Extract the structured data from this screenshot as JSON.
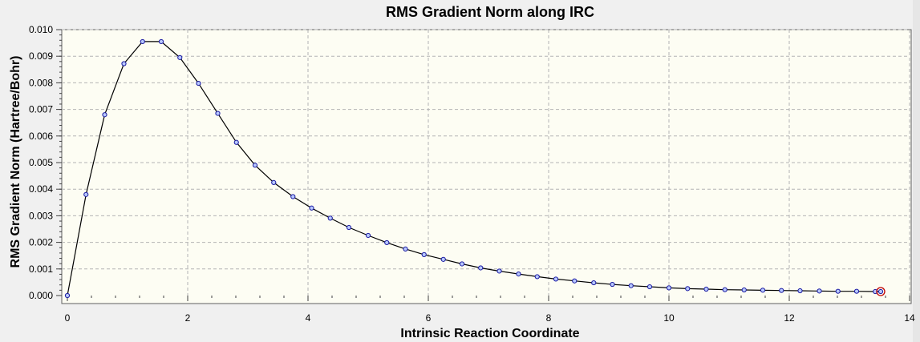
{
  "chart_data": {
    "type": "line",
    "title": "RMS Gradient Norm along IRC",
    "xlabel": "Intrinsic Reaction Coordinate",
    "ylabel": "RMS Gradient Norm (Hartree/Bohr)",
    "xlim": [
      0,
      14
    ],
    "ylim": [
      0,
      0.01
    ],
    "xticks": [
      "0",
      "2",
      "4",
      "6",
      "8",
      "10",
      "12",
      "14"
    ],
    "xtick_values": [
      0,
      2,
      4,
      6,
      8,
      10,
      12,
      14
    ],
    "yticks": [
      "0.000",
      "0.001",
      "0.002",
      "0.003",
      "0.004",
      "0.005",
      "0.006",
      "0.007",
      "0.008",
      "0.009",
      "0.010"
    ],
    "ytick_values": [
      0,
      0.001,
      0.002,
      0.003,
      0.004,
      0.005,
      0.006,
      0.007,
      0.008,
      0.009,
      0.01
    ],
    "grid": true,
    "highlighted_point_index": 44,
    "colors": {
      "line": "#000000",
      "marker_fill": "#b8c8ff",
      "marker_edge": "#1a1aa0",
      "highlight": "#c00000",
      "plot_background": "#fdfdf3"
    },
    "x": [
      0,
      0.31,
      0.62,
      0.94,
      1.25,
      1.56,
      1.87,
      2.18,
      2.5,
      2.81,
      3.12,
      3.43,
      3.75,
      4.06,
      4.37,
      4.68,
      5.0,
      5.31,
      5.62,
      5.93,
      6.25,
      6.56,
      6.87,
      7.18,
      7.5,
      7.81,
      8.12,
      8.43,
      8.75,
      9.06,
      9.37,
      9.68,
      10.0,
      10.31,
      10.62,
      10.93,
      11.25,
      11.56,
      11.87,
      12.18,
      12.5,
      12.81,
      13.12,
      13.43,
      13.52
    ],
    "y": [
      0.0,
      0.0038,
      0.0068,
      0.00872,
      0.00955,
      0.00955,
      0.00895,
      0.00798,
      0.00685,
      0.00576,
      0.0049,
      0.00425,
      0.00372,
      0.00329,
      0.00291,
      0.00256,
      0.00226,
      0.00199,
      0.00175,
      0.00154,
      0.00136,
      0.00119,
      0.00104,
      0.00092,
      0.00081,
      0.00071,
      0.00062,
      0.00055,
      0.00048,
      0.00042,
      0.00037,
      0.00033,
      0.00029,
      0.00026,
      0.00024,
      0.00022,
      0.00021,
      0.0002,
      0.00019,
      0.00018,
      0.00017,
      0.00016,
      0.00016,
      0.00015,
      0.00015
    ]
  }
}
